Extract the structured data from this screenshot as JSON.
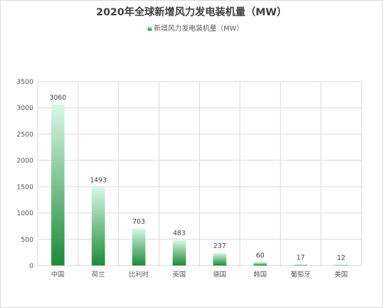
{
  "chart_data": {
    "type": "bar",
    "title": "2020年全球新增风力发电装机量（MW）",
    "categories": [
      "中国",
      "荷兰",
      "比利时",
      "英国",
      "德国",
      "韩国",
      "葡萄牙",
      "美国"
    ],
    "series": [
      {
        "name": "新增风力发电装机量（MW）",
        "values": [
          3060,
          1493,
          703,
          483,
          237,
          60,
          17,
          12
        ]
      }
    ],
    "data_labels": [
      "3060",
      "1493",
      "703",
      "483",
      "237",
      "60",
      "17",
      "12"
    ],
    "ylim": [
      0,
      3500
    ],
    "yticks": [
      0,
      500,
      1000,
      1500,
      2000,
      2500,
      3000,
      3500
    ],
    "grid": true,
    "legend_position": "top",
    "colors": {
      "bar_top": "#d9f7e6",
      "bar_bottom": "#1e8a3a",
      "grid": "#d9d9d9",
      "legend_mark_top": "#c7efd5",
      "legend_mark_bottom": "#1e8a3a"
    }
  }
}
